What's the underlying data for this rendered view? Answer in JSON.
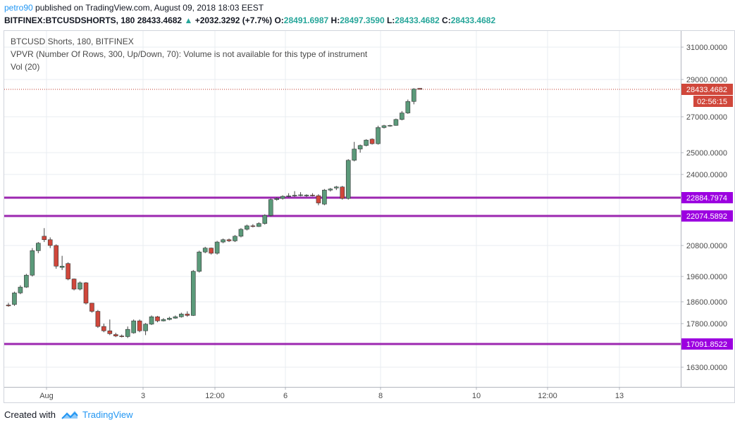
{
  "header": {
    "author": "petro90",
    "published_text": "published on TradingView.com, August 09, 2018 18:03 EEST",
    "symbol": "BITFINEX:BTCUSDSHORTS, 180",
    "last": "28433.4682",
    "change": "+2032.3292 (+7.7%)",
    "o_label": "O:",
    "o_value": "28491.6987",
    "h_label": "H:",
    "h_value": "28497.3590",
    "l_label": "L:",
    "l_value": "28433.4682",
    "c_label": "C:",
    "c_value": "28433.4682"
  },
  "legend": {
    "title": "BTCUSD Shorts, 180, BITFINEX",
    "vpvr": "VPVR (Number Of Rows, 300, Up/Down, 70): Volume is not available for this type of instrument",
    "vol": "Vol (20)"
  },
  "footer": {
    "created_with": "Created with",
    "brand": "TradingView"
  },
  "colors": {
    "up": "#5b9a7a",
    "down": "#d0473b",
    "wick": "#444444",
    "hline": "#9c27b0",
    "hline_label_bg": "#9c00e0",
    "price_label_bg": "#d0473b",
    "grid": "#e9ecf1",
    "last_price_line": "#c0392b"
  },
  "chart_data": {
    "type": "candlestick",
    "y_axis_ticks": [
      "31000.0000",
      "29000.0000",
      "27000.0000",
      "25000.0000",
      "24000.0000",
      "20800.0000",
      "19600.0000",
      "18600.0000",
      "17800.0000",
      "16300.0000"
    ],
    "x_axis_ticks": [
      "Aug",
      "3",
      "12:00",
      "6",
      "8",
      "10",
      "12:00",
      "13"
    ],
    "last_price_label": "28433.4682",
    "countdown_label": "02:56:15",
    "horizontal_lines": [
      {
        "price": 22884.7974,
        "label": "22884.7974"
      },
      {
        "price": 22074.5892,
        "label": "22074.5892"
      },
      {
        "price": 17091.8522,
        "label": "17091.8522"
      }
    ],
    "candles": [
      [
        18480,
        18560,
        18420,
        18450
      ],
      [
        18500,
        19000,
        18450,
        18950
      ],
      [
        18950,
        19250,
        18900,
        19180
      ],
      [
        19180,
        19700,
        19150,
        19650
      ],
      [
        19650,
        20700,
        19600,
        20600
      ],
      [
        20600,
        20950,
        20500,
        20900
      ],
      [
        21200,
        21550,
        20950,
        21050
      ],
      [
        21050,
        21150,
        20700,
        20800
      ],
      [
        20800,
        20850,
        19900,
        20000
      ],
      [
        19950,
        20400,
        19850,
        20000
      ],
      [
        20100,
        20150,
        19450,
        19500
      ],
      [
        19500,
        19520,
        19050,
        19100
      ],
      [
        19100,
        19400,
        19050,
        19350
      ],
      [
        19350,
        19380,
        18500,
        18550
      ],
      [
        18550,
        18560,
        18200,
        18250
      ],
      [
        18250,
        18300,
        17650,
        17700
      ],
      [
        17700,
        17800,
        17500,
        17550
      ],
      [
        17550,
        17950,
        17400,
        17450
      ],
      [
        17420,
        17480,
        17330,
        17370
      ],
      [
        17370,
        17420,
        17320,
        17350
      ],
      [
        17350,
        17700,
        17300,
        17600
      ],
      [
        17480,
        17950,
        17450,
        17900
      ],
      [
        17900,
        17950,
        17500,
        17550
      ],
      [
        17550,
        17820,
        17400,
        17780
      ],
      [
        17780,
        18100,
        17750,
        18050
      ],
      [
        18050,
        18080,
        17850,
        17900
      ],
      [
        17900,
        18000,
        17880,
        17950
      ],
      [
        17950,
        18050,
        17920,
        18000
      ],
      [
        18000,
        18100,
        17980,
        18050
      ],
      [
        18050,
        18200,
        18020,
        18150
      ],
      [
        18150,
        18250,
        18050,
        18100
      ],
      [
        18100,
        19850,
        18080,
        19800
      ],
      [
        19800,
        20600,
        19750,
        20550
      ],
      [
        20550,
        20750,
        20500,
        20700
      ],
      [
        20700,
        20720,
        20450,
        20500
      ],
      [
        20500,
        21000,
        20450,
        20950
      ],
      [
        20950,
        21100,
        20900,
        21050
      ],
      [
        21050,
        21100,
        20950,
        21000
      ],
      [
        21000,
        21250,
        20950,
        21200
      ],
      [
        21200,
        21550,
        21150,
        21500
      ],
      [
        21500,
        21700,
        21450,
        21650
      ],
      [
        21650,
        21720,
        21580,
        21620
      ],
      [
        21620,
        21800,
        21600,
        21750
      ],
      [
        21750,
        22150,
        21700,
        22100
      ],
      [
        22100,
        22850,
        22050,
        22800
      ],
      [
        22800,
        22900,
        22750,
        22850
      ],
      [
        22850,
        23000,
        22800,
        22950
      ],
      [
        22950,
        23100,
        22900,
        22970
      ],
      [
        22970,
        23200,
        22920,
        23000
      ],
      [
        23000,
        23150,
        22950,
        23020
      ],
      [
        22980,
        23050,
        22920,
        23010
      ],
      [
        23010,
        23100,
        22950,
        22980
      ],
      [
        22980,
        23050,
        22550,
        22650
      ],
      [
        22600,
        23300,
        22550,
        23250
      ],
      [
        23250,
        23350,
        23180,
        23300
      ],
      [
        23350,
        23450,
        23250,
        23400
      ],
      [
        23400,
        23450,
        22800,
        22850
      ],
      [
        22850,
        24700,
        22800,
        24650
      ],
      [
        24650,
        25600,
        24600,
        25200
      ],
      [
        25200,
        25450,
        25000,
        25400
      ],
      [
        25400,
        25750,
        25350,
        25700
      ],
      [
        25750,
        25800,
        25450,
        25500
      ],
      [
        25500,
        26500,
        25450,
        26400
      ],
      [
        26400,
        26550,
        26350,
        26500
      ],
      [
        26500,
        26550,
        26450,
        26520
      ],
      [
        26520,
        26900,
        26500,
        26850
      ],
      [
        26850,
        27300,
        26800,
        27200
      ],
      [
        27200,
        27900,
        27150,
        27800
      ],
      [
        27800,
        28500,
        27650,
        28450
      ],
      [
        28491.6987,
        28497.359,
        28433.4682,
        28433.4682
      ]
    ]
  }
}
